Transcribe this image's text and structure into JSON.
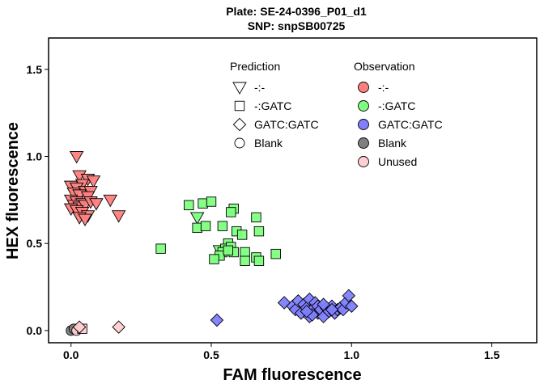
{
  "chart_data": {
    "type": "scatter",
    "title": "Plate: SE-24-0396_P01_d1",
    "subtitle": "SNP:  snpSB00725",
    "xlabel": "FAM fluorescence",
    "ylabel": "HEX fluorescence",
    "xlim": [
      -0.08,
      1.66
    ],
    "ylim": [
      -0.07,
      1.68
    ],
    "xticks": [
      0.0,
      0.5,
      1.0,
      1.5
    ],
    "xtick_labels": [
      "0.0",
      "0.5",
      "1.0",
      "1.5"
    ],
    "yticks": [
      0.0,
      0.5,
      1.0,
      1.5
    ],
    "ytick_labels": [
      "0.0",
      "0.5",
      "1.0",
      "1.5"
    ],
    "grid": false,
    "legend_placement": "inside-top",
    "prediction_legend": {
      "title": "Prediction",
      "items": [
        {
          "label": "-:-",
          "shape": "triangle-down"
        },
        {
          "label": "-:GATC",
          "shape": "square"
        },
        {
          "label": "GATC:GATC",
          "shape": "diamond"
        },
        {
          "label": "Blank",
          "shape": "circle"
        }
      ]
    },
    "observation_legend": {
      "title": "Observation",
      "items": [
        {
          "label": "-:-",
          "color": "#ff7f7f"
        },
        {
          "label": "-:GATC",
          "color": "#7fff7f"
        },
        {
          "label": "GATC:GATC",
          "color": "#7f7fff"
        },
        {
          "label": "Blank",
          "color": "#7f7f7f"
        },
        {
          "label": "Unused",
          "color": "#ffcfd2"
        }
      ]
    },
    "series": [
      {
        "prediction": "-:-",
        "observation": "-:-",
        "shape": "triangle-down",
        "color": "#ff7f7f",
        "points": [
          [
            0.02,
            1.0
          ],
          [
            0.03,
            0.89
          ],
          [
            0.06,
            0.87
          ],
          [
            0.08,
            0.86
          ],
          [
            0.04,
            0.84
          ],
          [
            0.0,
            0.83
          ],
          [
            0.02,
            0.82
          ],
          [
            0.05,
            0.8
          ],
          [
            0.07,
            0.8
          ],
          [
            0.01,
            0.79
          ],
          [
            0.03,
            0.78
          ],
          [
            0.06,
            0.77
          ],
          [
            0.0,
            0.75
          ],
          [
            0.02,
            0.74
          ],
          [
            0.04,
            0.73
          ],
          [
            0.01,
            0.72
          ],
          [
            0.03,
            0.71
          ],
          [
            0.05,
            0.72
          ],
          [
            0.07,
            0.74
          ],
          [
            0.0,
            0.7
          ],
          [
            0.02,
            0.69
          ],
          [
            0.04,
            0.68
          ],
          [
            0.06,
            0.66
          ],
          [
            0.03,
            0.65
          ],
          [
            0.05,
            0.64
          ],
          [
            0.14,
            0.75
          ],
          [
            0.09,
            0.73
          ],
          [
            0.17,
            0.66
          ]
        ]
      },
      {
        "prediction": "-:-",
        "observation": "-:GATC",
        "shape": "triangle-down",
        "color": "#7fff7f",
        "points": [
          [
            0.45,
            0.65
          ],
          [
            0.53,
            0.46
          ]
        ]
      },
      {
        "prediction": "-:GATC",
        "observation": "-:GATC",
        "shape": "square",
        "color": "#7fff7f",
        "points": [
          [
            0.32,
            0.47
          ],
          [
            0.42,
            0.72
          ],
          [
            0.47,
            0.73
          ],
          [
            0.5,
            0.74
          ],
          [
            0.45,
            0.59
          ],
          [
            0.48,
            0.6
          ],
          [
            0.54,
            0.6
          ],
          [
            0.58,
            0.7
          ],
          [
            0.57,
            0.68
          ],
          [
            0.56,
            0.5
          ],
          [
            0.55,
            0.47
          ],
          [
            0.57,
            0.48
          ],
          [
            0.58,
            0.45
          ],
          [
            0.54,
            0.45
          ],
          [
            0.53,
            0.43
          ],
          [
            0.51,
            0.41
          ],
          [
            0.59,
            0.57
          ],
          [
            0.61,
            0.55
          ],
          [
            0.62,
            0.45
          ],
          [
            0.62,
            0.4
          ],
          [
            0.66,
            0.65
          ],
          [
            0.67,
            0.57
          ],
          [
            0.66,
            0.42
          ],
          [
            0.67,
            0.4
          ],
          [
            0.73,
            0.44
          ],
          [
            0.56,
            0.46
          ]
        ]
      },
      {
        "prediction": "GATC:GATC",
        "observation": "GATC:GATC",
        "shape": "diamond",
        "color": "#7f7fff",
        "points": [
          [
            0.76,
            0.16
          ],
          [
            0.79,
            0.14
          ],
          [
            0.8,
            0.12
          ],
          [
            0.81,
            0.17
          ],
          [
            0.82,
            0.1
          ],
          [
            0.83,
            0.15
          ],
          [
            0.84,
            0.13
          ],
          [
            0.85,
            0.18
          ],
          [
            0.85,
            0.08
          ],
          [
            0.86,
            0.12
          ],
          [
            0.87,
            0.16
          ],
          [
            0.88,
            0.1
          ],
          [
            0.88,
            0.14
          ],
          [
            0.89,
            0.12
          ],
          [
            0.9,
            0.08
          ],
          [
            0.91,
            0.13
          ],
          [
            0.92,
            0.11
          ],
          [
            0.93,
            0.14
          ],
          [
            0.94,
            0.1
          ],
          [
            0.95,
            0.12
          ],
          [
            0.96,
            0.13
          ],
          [
            0.97,
            0.12
          ],
          [
            0.98,
            0.16
          ],
          [
            0.99,
            0.2
          ],
          [
            1.0,
            0.14
          ],
          [
            0.9,
            0.15
          ],
          [
            0.86,
            0.09
          ],
          [
            0.52,
            0.06
          ],
          [
            0.84,
            0.11
          ],
          [
            0.93,
            0.12
          ]
        ]
      },
      {
        "prediction": "Blank",
        "observation": "Blank",
        "shape": "circle",
        "color": "#7f7f7f",
        "points": [
          [
            0.0,
            0.0
          ],
          [
            0.01,
            0.01
          ]
        ]
      },
      {
        "prediction": "Blank",
        "observation": "Unused",
        "shape": "circle",
        "color": "#ffcfd2",
        "points": [
          [
            0.02,
            0.0
          ]
        ]
      },
      {
        "prediction": "-:GATC",
        "observation": "Unused",
        "shape": "square",
        "color": "#ffcfd2",
        "points": [
          [
            0.04,
            0.01
          ]
        ]
      },
      {
        "prediction": "GATC:GATC",
        "observation": "Unused",
        "shape": "diamond",
        "color": "#ffcfd2",
        "points": [
          [
            0.17,
            0.02
          ],
          [
            0.03,
            0.02
          ]
        ]
      }
    ]
  }
}
